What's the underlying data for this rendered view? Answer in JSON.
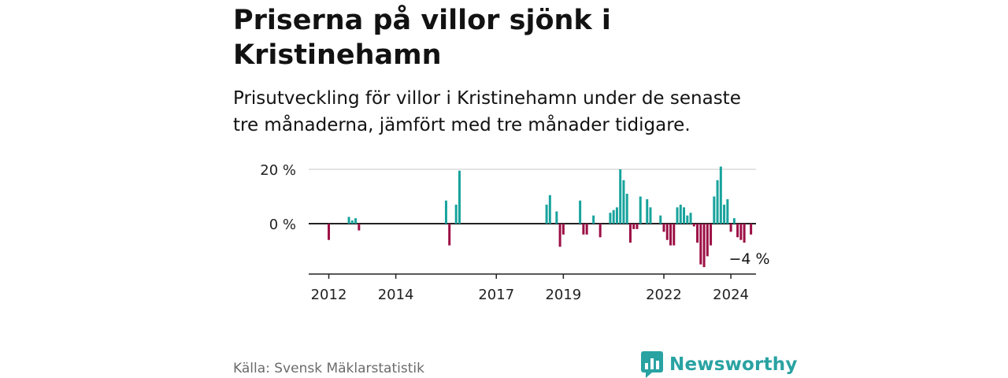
{
  "title": "Priserna på villor sjönk i Kristinehamn",
  "subtitle": "Prisutveckling för villor i Kristinehamn under de senaste tre månaderna, jämfört med tre månader tidigare.",
  "source": "Källa: Svensk Mäklarstatistik",
  "brand": {
    "name": "Newsworthy"
  },
  "colors": {
    "positive": "#18a39d",
    "negative": "#9c0f45",
    "grid": "#dcdcdc",
    "axis": "#222222",
    "brand": "#29a2a2"
  },
  "chart_data": {
    "type": "bar",
    "ylim": [
      -19,
      20
    ],
    "xlim": [
      2011.4,
      2024.75
    ],
    "y_ticks": [
      0,
      20
    ],
    "y_tick_labels": [
      "0 %",
      "20 %"
    ],
    "x_ticks": [
      2012,
      2014,
      2017,
      2019,
      2022,
      2024
    ],
    "x_tick_labels": [
      "2012",
      "2014",
      "2017",
      "2019",
      "2022",
      "2024"
    ],
    "last_label": "−4 %",
    "series": [
      {
        "name": "Prisutveckling",
        "points": [
          {
            "x": 2012.0,
            "y": -6
          },
          {
            "x": 2012.6,
            "y": 2.5
          },
          {
            "x": 2012.7,
            "y": 1.2
          },
          {
            "x": 2012.8,
            "y": 2
          },
          {
            "x": 2012.9,
            "y": -2.5
          },
          {
            "x": 2015.5,
            "y": 8.5
          },
          {
            "x": 2015.6,
            "y": -8
          },
          {
            "x": 2015.8,
            "y": 7
          },
          {
            "x": 2015.9,
            "y": 19.5
          },
          {
            "x": 2018.5,
            "y": 7
          },
          {
            "x": 2018.6,
            "y": 10.5
          },
          {
            "x": 2018.8,
            "y": 4.5
          },
          {
            "x": 2018.9,
            "y": -8.5
          },
          {
            "x": 2019.0,
            "y": -4
          },
          {
            "x": 2019.5,
            "y": 8.5
          },
          {
            "x": 2019.6,
            "y": -4
          },
          {
            "x": 2019.7,
            "y": -4
          },
          {
            "x": 2019.9,
            "y": 3
          },
          {
            "x": 2020.1,
            "y": -5
          },
          {
            "x": 2020.4,
            "y": 4
          },
          {
            "x": 2020.5,
            "y": 5
          },
          {
            "x": 2020.6,
            "y": 6
          },
          {
            "x": 2020.7,
            "y": 20
          },
          {
            "x": 2020.8,
            "y": 16
          },
          {
            "x": 2020.9,
            "y": 11
          },
          {
            "x": 2021.0,
            "y": -7
          },
          {
            "x": 2021.1,
            "y": -2
          },
          {
            "x": 2021.2,
            "y": -2
          },
          {
            "x": 2021.3,
            "y": 10
          },
          {
            "x": 2021.5,
            "y": 9
          },
          {
            "x": 2021.6,
            "y": 6
          },
          {
            "x": 2021.9,
            "y": 3
          },
          {
            "x": 2022.0,
            "y": -3
          },
          {
            "x": 2022.1,
            "y": -6
          },
          {
            "x": 2022.2,
            "y": -8
          },
          {
            "x": 2022.3,
            "y": -8
          },
          {
            "x": 2022.4,
            "y": 6
          },
          {
            "x": 2022.5,
            "y": 7
          },
          {
            "x": 2022.6,
            "y": 6
          },
          {
            "x": 2022.7,
            "y": 3
          },
          {
            "x": 2022.8,
            "y": 4
          },
          {
            "x": 2022.9,
            "y": -1
          },
          {
            "x": 2023.0,
            "y": -7
          },
          {
            "x": 2023.1,
            "y": -15
          },
          {
            "x": 2023.2,
            "y": -16
          },
          {
            "x": 2023.3,
            "y": -12
          },
          {
            "x": 2023.4,
            "y": -8
          },
          {
            "x": 2023.5,
            "y": 10
          },
          {
            "x": 2023.6,
            "y": 16
          },
          {
            "x": 2023.7,
            "y": 21
          },
          {
            "x": 2023.8,
            "y": 7
          },
          {
            "x": 2023.9,
            "y": 9
          },
          {
            "x": 2024.0,
            "y": -3
          },
          {
            "x": 2024.1,
            "y": 2
          },
          {
            "x": 2024.2,
            "y": -5
          },
          {
            "x": 2024.3,
            "y": -6
          },
          {
            "x": 2024.4,
            "y": -7
          },
          {
            "x": 2024.6,
            "y": -4
          }
        ]
      }
    ]
  }
}
